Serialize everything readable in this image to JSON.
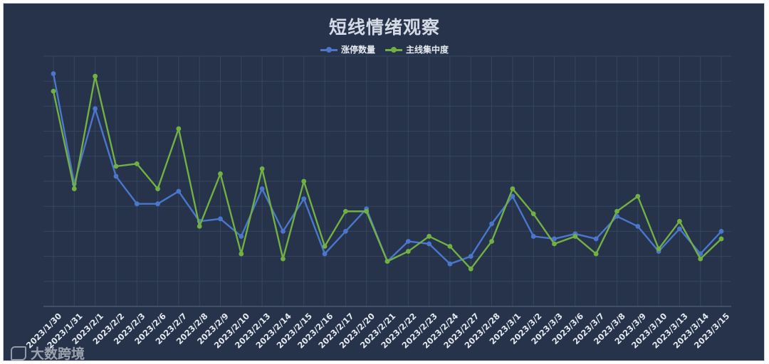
{
  "header": {
    "title": "短线情绪观察"
  },
  "watermark": {
    "text": "大数跨境"
  },
  "colors": {
    "background": "#26334a",
    "grid": "#36465f",
    "series1": "#4a77cc",
    "series2": "#72b043"
  },
  "chart_data": {
    "type": "line",
    "title": "短线情绪观察",
    "xlabel": "",
    "ylabel": "",
    "ylim": [
      0,
      10
    ],
    "grid": true,
    "legend_position": "top-center",
    "categories": [
      "2023/1/30",
      "2023/1/31",
      "2023/2/1",
      "2023/2/2",
      "2023/2/3",
      "2023/2/6",
      "2023/2/7",
      "2023/2/8",
      "2023/2/9",
      "2023/2/10",
      "2023/2/13",
      "2023/2/14",
      "2023/2/15",
      "2023/2/16",
      "2023/2/17",
      "2023/2/20",
      "2023/2/21",
      "2023/2/22",
      "2023/2/23",
      "2023/2/24",
      "2023/2/27",
      "2023/2/28",
      "2023/3/1",
      "2023/3/2",
      "2023/3/3",
      "2023/3/6",
      "2023/3/7",
      "2023/3/8",
      "2023/3/9",
      "2023/3/10",
      "2023/3/13",
      "2023/3/14",
      "2023/3/15"
    ],
    "series": [
      {
        "name": "涨停数量",
        "color": "#4a77cc",
        "values": [
          9.3,
          4.9,
          7.9,
          5.2,
          4.1,
          4.1,
          4.6,
          3.4,
          3.5,
          2.8,
          4.7,
          3.0,
          4.3,
          2.1,
          3.0,
          3.9,
          1.8,
          2.6,
          2.5,
          1.7,
          2.0,
          3.3,
          4.4,
          2.8,
          2.7,
          2.9,
          2.7,
          3.6,
          3.2,
          2.2,
          3.1,
          2.1,
          3.0
        ]
      },
      {
        "name": "主线集中度",
        "color": "#72b043",
        "values": [
          8.6,
          4.7,
          9.2,
          5.6,
          5.7,
          4.7,
          7.1,
          3.2,
          5.3,
          2.1,
          5.5,
          1.9,
          5.0,
          2.4,
          3.8,
          3.8,
          1.8,
          2.2,
          2.8,
          2.4,
          1.5,
          2.6,
          4.7,
          3.7,
          2.5,
          2.8,
          2.1,
          3.8,
          4.4,
          2.3,
          3.4,
          1.9,
          2.7
        ]
      }
    ]
  }
}
